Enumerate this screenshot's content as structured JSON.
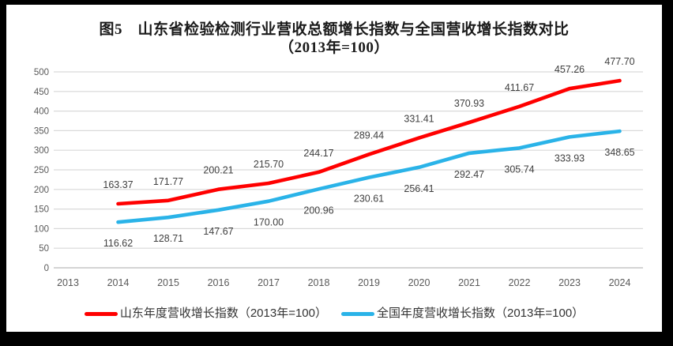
{
  "window": {
    "frame_color": "#000000",
    "panel_color": "#ffffff"
  },
  "title": {
    "line1": "图5　山东省检验检测行业营收总额增长指数与全国营收增长指数对比",
    "line2": "（2013年=100）"
  },
  "chart_data": {
    "type": "line",
    "title": "图5 山东省检验检测行业营收总额增长指数与全国营收增长指数对比（2013年=100）",
    "categories": [
      2013,
      2014,
      2015,
      2016,
      2017,
      2018,
      2019,
      2020,
      2021,
      2022,
      2023,
      2024
    ],
    "series": [
      {
        "name": "山东年度营收增长指数（2013年=100）",
        "color": "#ff0000",
        "start_year": 2014,
        "label_position": "above",
        "values": [
          163.37,
          171.77,
          200.21,
          215.7,
          244.17,
          289.44,
          331.41,
          370.93,
          411.67,
          457.26,
          477.7
        ]
      },
      {
        "name": "全国年度营收增长指数（2013年=100）",
        "color": "#2ab3e8",
        "start_year": 2014,
        "label_position": "below",
        "values": [
          116.62,
          128.71,
          147.67,
          170.0,
          200.96,
          230.61,
          256.41,
          292.47,
          305.74,
          333.93,
          348.65
        ]
      }
    ],
    "ylim": [
      0,
      500
    ],
    "ytick_step": 50,
    "grid": true,
    "legend_position": "bottom",
    "style": {
      "grid_color": "#d9d9d9",
      "axis_line_color": "#c6c6c6",
      "tick_label_color": "#595959",
      "data_label_color": "#404040",
      "line_width": 4.6
    }
  }
}
